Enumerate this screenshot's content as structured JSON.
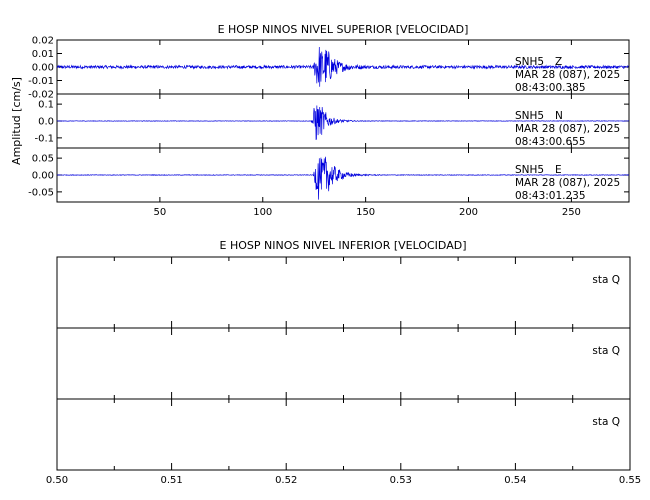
{
  "colors": {
    "trace": "#0000dd",
    "axes": "#000000",
    "background": "#ffffff"
  },
  "chart_data": [
    {
      "type": "line",
      "title": "E HOSP NINOS NIVEL SUPERIOR [VELOCIDAD]",
      "ylabel": "Amplitud [cm/s]",
      "xlabel": "",
      "xlim": [
        0,
        278
      ],
      "x_ticks": [
        50,
        100,
        150,
        200,
        250
      ],
      "grid": false,
      "panels": [
        {
          "channel": "Z",
          "station_label": "SNH5",
          "channel_label": "Z",
          "date_label": "MAR 28 (087), 2025",
          "time_label": "08:43:00.385",
          "ylim": [
            -0.02,
            0.02
          ],
          "y_ticks": [
            "0.02",
            "0.01",
            "0.00",
            "-0.01",
            "-0.02"
          ],
          "y_tick_values": [
            0.02,
            0.01,
            0.0,
            -0.01,
            -0.02
          ],
          "noise_amplitude": 0.0011,
          "events": [
            {
              "t": 127,
              "peak": 0.019,
              "decay": 3.2
            },
            {
              "t": 131,
              "peak": 0.009,
              "decay": 5.0
            }
          ]
        },
        {
          "channel": "N",
          "station_label": "SNH5",
          "channel_label": "N",
          "date_label": "MAR 28 (087), 2025",
          "time_label": "08:43:00.655",
          "ylim": [
            -0.16,
            0.16
          ],
          "y_ticks": [
            "0.1",
            "0.0",
            "-0.1"
          ],
          "y_tick_values": [
            0.1,
            0.0,
            -0.1
          ],
          "noise_amplitude": 0.0015,
          "events": [
            {
              "t": 126,
              "peak": 0.14,
              "decay": 2.2
            },
            {
              "t": 129,
              "peak": 0.05,
              "decay": 4.5
            }
          ]
        },
        {
          "channel": "E",
          "station_label": "SNH5",
          "channel_label": "E",
          "date_label": "MAR 28 (087), 2025",
          "time_label": "08:43:01.235",
          "ylim": [
            -0.08,
            0.08
          ],
          "y_ticks": [
            "0.05",
            "0.00",
            "-0.05"
          ],
          "y_tick_values": [
            0.05,
            0.0,
            -0.05
          ],
          "noise_amplitude": 0.0009,
          "events": [
            {
              "t": 127,
              "peak": 0.078,
              "decay": 3.0
            },
            {
              "t": 131,
              "peak": 0.04,
              "decay": 5.5
            }
          ]
        }
      ]
    },
    {
      "type": "line",
      "title": "E HOSP NINOS NIVEL INFERIOR [VELOCIDAD]",
      "ylabel": "",
      "xlabel": "",
      "xlim": [
        0.5,
        0.55
      ],
      "x_ticks": [
        "0.50",
        "0.51",
        "0.52",
        "0.53",
        "0.54",
        "0.55"
      ],
      "x_tick_values": [
        0.5,
        0.51,
        0.52,
        0.53,
        0.54,
        0.55
      ],
      "grid": false,
      "panels": [
        {
          "label": "sta  Q"
        },
        {
          "label": "sta  Q"
        },
        {
          "label": "sta  Q"
        }
      ]
    }
  ]
}
